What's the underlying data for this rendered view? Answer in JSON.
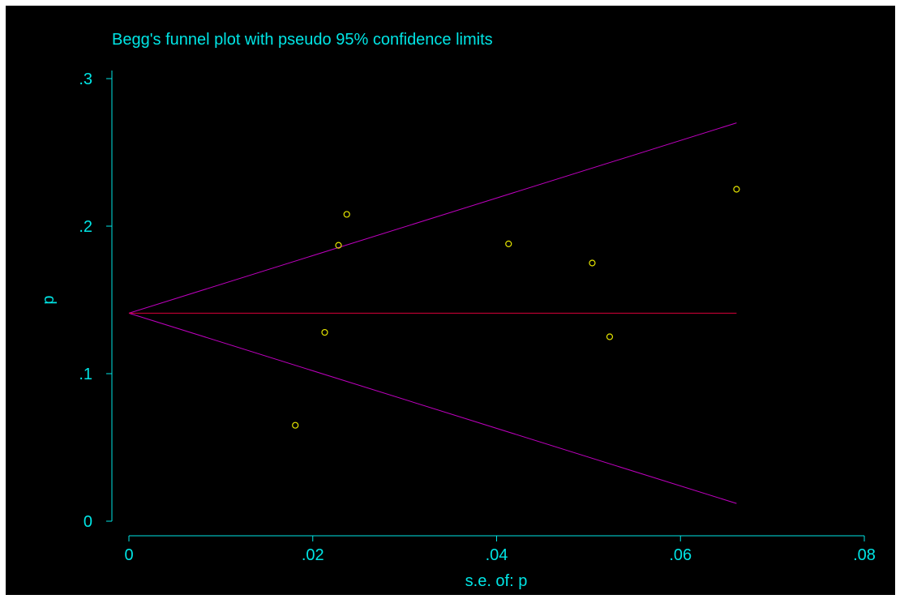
{
  "chart_data": {
    "type": "scatter",
    "title": "Begg's funnel plot with pseudo 95% confidence limits",
    "xlabel": "s.e. of: p",
    "ylabel": "p",
    "xlim": [
      0,
      0.08
    ],
    "ylim": [
      0,
      0.3
    ],
    "x_ticks": [
      {
        "value": 0,
        "label": "0"
      },
      {
        "value": 0.02,
        "label": ".02"
      },
      {
        "value": 0.04,
        "label": ".04"
      },
      {
        "value": 0.06,
        "label": ".06"
      },
      {
        "value": 0.08,
        "label": ".08"
      }
    ],
    "y_ticks": [
      {
        "value": 0,
        "label": "0"
      },
      {
        "value": 0.1,
        "label": ".1"
      },
      {
        "value": 0.2,
        "label": ".2"
      },
      {
        "value": 0.3,
        "label": ".3"
      }
    ],
    "points": [
      {
        "x": 0.0181,
        "y": 0.065
      },
      {
        "x": 0.0213,
        "y": 0.128
      },
      {
        "x": 0.0228,
        "y": 0.187
      },
      {
        "x": 0.0237,
        "y": 0.208
      },
      {
        "x": 0.0413,
        "y": 0.188
      },
      {
        "x": 0.0504,
        "y": 0.175
      },
      {
        "x": 0.0523,
        "y": 0.125
      },
      {
        "x": 0.0661,
        "y": 0.225
      }
    ],
    "pooled_estimate": 0.141,
    "pooled_line_x": [
      0,
      0.0661
    ],
    "confidence_limits": {
      "upper": [
        {
          "x": 0,
          "y": 0.141
        },
        {
          "x": 0.0661,
          "y": 0.27
        }
      ],
      "lower": [
        {
          "x": 0,
          "y": 0.141
        },
        {
          "x": 0.0661,
          "y": 0.012
        }
      ]
    },
    "colors": {
      "background": "#000000",
      "text": "#00e5e5",
      "axis": "#00e5e5",
      "points": "#e5e500",
      "pooled_line": "#d8003a",
      "confidence_lines": "#c000c0"
    }
  }
}
